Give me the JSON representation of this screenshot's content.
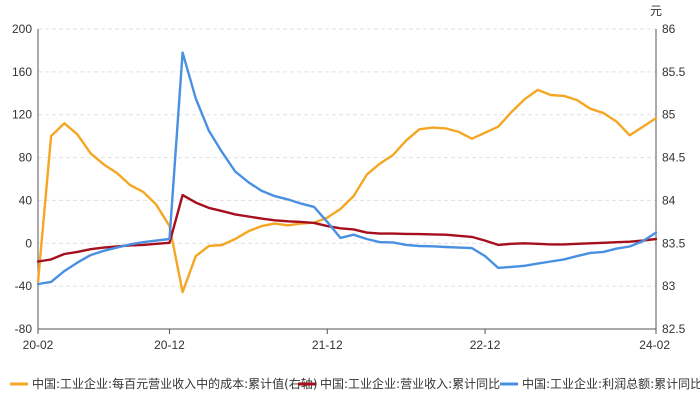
{
  "chart_data": {
    "type": "line",
    "title": "",
    "x_ticks": [
      "20-02",
      "20-12",
      "21-12",
      "22-12",
      "24-02"
    ],
    "y_left": {
      "min": -80,
      "max": 200,
      "ticks": [
        -80,
        -40,
        0,
        40,
        80,
        120,
        160,
        200
      ]
    },
    "y_right": {
      "min": 82.5,
      "max": 86,
      "ticks": [
        "82.5",
        "83",
        "83.5",
        "84",
        "84.5",
        "85",
        "85.5",
        "86"
      ],
      "unit": "元"
    },
    "grid": true,
    "legend_position": "bottom",
    "series": [
      {
        "name": "中国:工业企业:每百元营业收入中的成本:累计值(右轴)",
        "axis": "right",
        "color": "#F5A623",
        "values": [
          83.05,
          84.75,
          84.9,
          84.77,
          84.55,
          84.42,
          84.32,
          84.18,
          84.1,
          83.95,
          83.7,
          82.93,
          83.35,
          83.47,
          83.48,
          83.55,
          83.64,
          83.7,
          83.73,
          83.71,
          83.73,
          83.74,
          83.8,
          83.9,
          84.05,
          84.3,
          84.43,
          84.53,
          84.7,
          84.83,
          84.85,
          84.84,
          84.8,
          84.72,
          84.79,
          84.86,
          85.03,
          85.18,
          85.29,
          85.23,
          85.22,
          85.17,
          85.07,
          85.02,
          84.92,
          84.76,
          84.86,
          84.96
        ]
      },
      {
        "name": "中国:工业企业:营业收入:累计同比",
        "axis": "left",
        "color": "#A50F1E",
        "values": [
          -17,
          -15,
          -10,
          -8,
          -5.5,
          -4,
          -3,
          -2,
          -1.5,
          -0.5,
          0.5,
          45,
          38,
          33,
          30,
          27,
          25,
          23,
          21.5,
          20.5,
          20,
          19,
          16,
          14,
          13,
          10,
          9,
          9,
          8.8,
          8.6,
          8.3,
          8,
          7,
          6,
          2.5,
          -1.5,
          -0.5,
          0,
          -0.5,
          -1,
          -1,
          -0.5,
          0,
          0.5,
          1,
          1.5,
          2.5,
          4
        ]
      },
      {
        "name": "中国:工业企业:利润总额:累计同比",
        "axis": "left",
        "color": "#4A90E2",
        "values": [
          -38,
          -36,
          -26,
          -18,
          -11,
          -7,
          -4,
          -1,
          1,
          2.5,
          4,
          178,
          135,
          105,
          85,
          67,
          57,
          49,
          44,
          41,
          37,
          34,
          20,
          5,
          8,
          4,
          1,
          0.8,
          -1.5,
          -2.5,
          -2.8,
          -3.5,
          -4,
          -4.5,
          -12,
          -23,
          -22,
          -21,
          -19,
          -17,
          -15,
          -12,
          -9,
          -8,
          -5,
          -3,
          2,
          10
        ]
      }
    ]
  }
}
